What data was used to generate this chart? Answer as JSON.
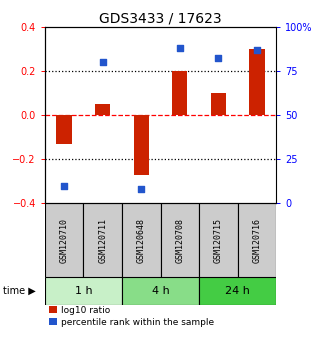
{
  "title": "GDS3433 / 17623",
  "samples": [
    "GSM120710",
    "GSM120711",
    "GSM120648",
    "GSM120708",
    "GSM120715",
    "GSM120716"
  ],
  "log10_ratio": [
    -0.13,
    0.05,
    -0.27,
    0.2,
    0.1,
    0.3
  ],
  "percentile_rank": [
    10,
    80,
    8,
    88,
    82,
    87
  ],
  "time_groups": [
    {
      "label": "1 h",
      "start": 0,
      "end": 2,
      "color": "#c8f0c8"
    },
    {
      "label": "4 h",
      "start": 2,
      "end": 4,
      "color": "#88dd88"
    },
    {
      "label": "24 h",
      "start": 4,
      "end": 6,
      "color": "#44cc44"
    }
  ],
  "bar_color": "#cc2200",
  "dot_color": "#2255cc",
  "left_ylim": [
    -0.4,
    0.4
  ],
  "right_ylim": [
    0,
    100
  ],
  "left_yticks": [
    -0.4,
    -0.2,
    0.0,
    0.2,
    0.4
  ],
  "right_yticks": [
    0,
    25,
    50,
    75,
    100
  ],
  "right_yticklabels": [
    "0",
    "25",
    "50",
    "75",
    "100%"
  ],
  "hlines_dotted": [
    -0.2,
    0.2
  ],
  "hline_dashed": 0.0,
  "background_color": "#ffffff",
  "sample_box_color": "#cccccc",
  "title_fontsize": 10,
  "tick_fontsize": 7,
  "bar_width": 0.4
}
